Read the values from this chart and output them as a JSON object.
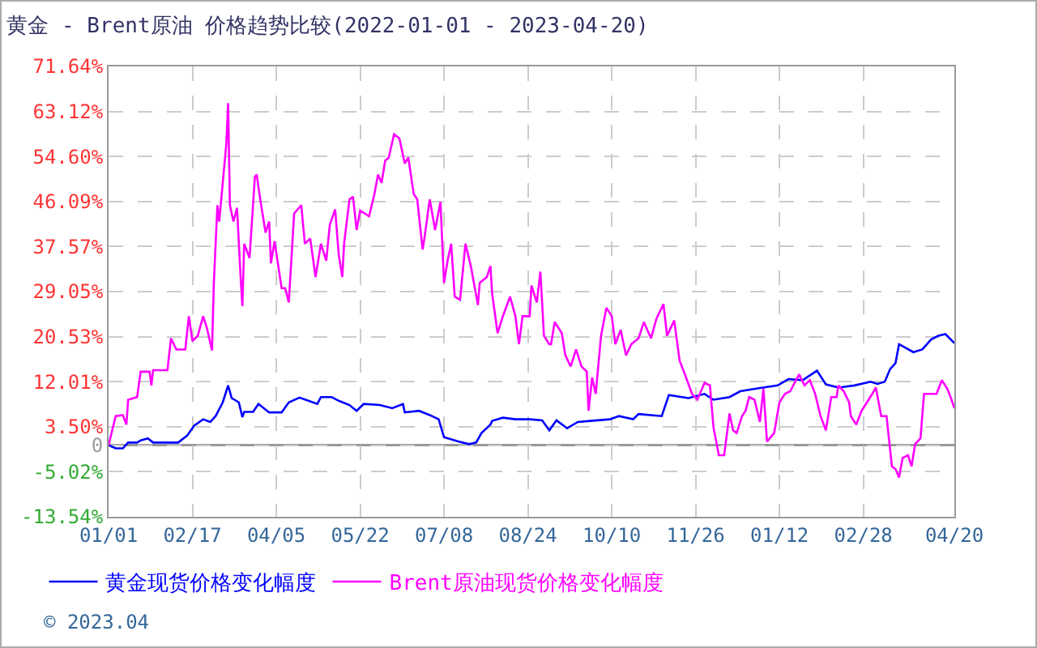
{
  "chart_data": {
    "type": "line",
    "title": "黄金 - Brent原油 价格趋势比较(2022-01-01 - 2023-04-20)",
    "xlim": [
      "2022-01-01",
      "2023-04-20"
    ],
    "xticks": [
      {
        "value": "2022-01-01",
        "label": "01/01"
      },
      {
        "value": "2022-02-17",
        "label": "02/17"
      },
      {
        "value": "2022-04-05",
        "label": "04/05"
      },
      {
        "value": "2022-05-22",
        "label": "05/22"
      },
      {
        "value": "2022-07-08",
        "label": "07/08"
      },
      {
        "value": "2022-08-24",
        "label": "08/24"
      },
      {
        "value": "2022-10-10",
        "label": "10/10"
      },
      {
        "value": "2022-11-26",
        "label": "11/26"
      },
      {
        "value": "2023-01-12",
        "label": "01/12"
      },
      {
        "value": "2023-02-28",
        "label": "02/28"
      },
      {
        "value": "2023-04-20",
        "label": "04/20"
      }
    ],
    "ylim": [
      -13.54,
      71.64
    ],
    "yticks": [
      {
        "value": 71.64,
        "label": "71.64%"
      },
      {
        "value": 63.12,
        "label": "63.12%"
      },
      {
        "value": 54.6,
        "label": "54.60%"
      },
      {
        "value": 46.09,
        "label": "46.09%"
      },
      {
        "value": 37.57,
        "label": "37.57%"
      },
      {
        "value": 29.05,
        "label": "29.05%"
      },
      {
        "value": 20.53,
        "label": "20.53%"
      },
      {
        "value": 12.01,
        "label": "12.01%"
      },
      {
        "value": 3.5,
        "label": "3.50%"
      },
      0,
      {
        "value": -5.02,
        "label": "-5.02%"
      },
      {
        "value": -13.54,
        "label": "-13.54%"
      }
    ],
    "grid": true,
    "legend": "bottom left",
    "marker": "none",
    "line_style": "solid",
    "ref_lines": [
      {
        "axis": "y",
        "value": 0,
        "color": "#999999"
      }
    ],
    "annotations": [
      "© 2023.04"
    ],
    "series": [
      {
        "name": "黄金现货价格变化幅度",
        "color": "#0000ff",
        "x": [
          "2022-01-01",
          "2022-01-05",
          "2022-01-09",
          "2022-01-12",
          "2022-01-17",
          "2022-01-19",
          "2022-01-23",
          "2022-01-26",
          "2022-02-09",
          "2022-02-14",
          "2022-02-18",
          "2022-02-23",
          "2022-02-27",
          "2022-03-02",
          "2022-03-06",
          "2022-03-09",
          "2022-03-11",
          "2022-03-15",
          "2022-03-17",
          "2022-03-18",
          "2022-03-23",
          "2022-03-26",
          "2022-04-01",
          "2022-04-08",
          "2022-04-12",
          "2022-04-18",
          "2022-04-23",
          "2022-04-28",
          "2022-04-30",
          "2022-05-06",
          "2022-05-10",
          "2022-05-16",
          "2022-05-20",
          "2022-05-24",
          "2022-06-02",
          "2022-06-09",
          "2022-06-15",
          "2022-06-16",
          "2022-06-24",
          "2022-06-30",
          "2022-07-05",
          "2022-07-08",
          "2022-07-16",
          "2022-07-22",
          "2022-07-26",
          "2022-07-29",
          "2022-08-03",
          "2022-08-04",
          "2022-08-10",
          "2022-08-17",
          "2022-08-25",
          "2022-09-01",
          "2022-09-05",
          "2022-09-09",
          "2022-09-15",
          "2022-09-21",
          "2022-09-28",
          "2022-10-09",
          "2022-10-14",
          "2022-10-22",
          "2022-10-25",
          "2022-11-07",
          "2022-11-11",
          "2022-11-22",
          "2022-12-01",
          "2022-12-06",
          "2022-12-15",
          "2022-12-21",
          "2022-12-30",
          "2023-01-05",
          "2023-01-11",
          "2023-01-17",
          "2023-01-25",
          "2023-02-02",
          "2023-02-07",
          "2023-02-14",
          "2023-02-23",
          "2023-03-04",
          "2023-03-08",
          "2023-03-12",
          "2023-03-15",
          "2023-03-18",
          "2023-03-20",
          "2023-03-28",
          "2023-04-02",
          "2023-04-07",
          "2023-04-11",
          "2023-04-15",
          "2023-04-20"
        ],
        "values": [
          0,
          -0.6,
          -0.6,
          0.5,
          0.5,
          0.9,
          1.3,
          0.5,
          0.5,
          1.8,
          3.7,
          4.9,
          4.4,
          5.5,
          8.1,
          11.3,
          8.9,
          8.1,
          5.3,
          6.3,
          6.3,
          7.8,
          6.2,
          6.2,
          8.1,
          9,
          8.4,
          7.8,
          9.1,
          9.1,
          8.4,
          7.6,
          6.5,
          7.8,
          7.6,
          7,
          7.8,
          6.2,
          6.5,
          5.7,
          4.9,
          1.5,
          0.7,
          0.2,
          0.5,
          2.3,
          3.9,
          4.6,
          5.2,
          4.9,
          4.9,
          4.7,
          2.8,
          4.7,
          3.2,
          4.4,
          4.6,
          4.9,
          5.5,
          4.9,
          5.9,
          5.5,
          9.5,
          8.9,
          9.7,
          8.6,
          9.1,
          10.2,
          10.7,
          11,
          11.3,
          12.5,
          12.3,
          14.1,
          11.5,
          10.9,
          11.3,
          12,
          11.6,
          12,
          14.4,
          15.5,
          19.1,
          17.6,
          18.1,
          20,
          20.7,
          21,
          19.3
        ]
      },
      {
        "name": "Brent原油现货价格变化幅度",
        "color": "#ff00ff",
        "x": [
          "2022-01-01",
          "2022-01-05",
          "2022-01-09",
          "2022-01-11",
          "2022-01-12",
          "2022-01-17",
          "2022-01-19",
          "2022-01-24",
          "2022-01-25",
          "2022-01-26",
          "2022-02-03",
          "2022-02-05",
          "2022-02-08",
          "2022-02-13",
          "2022-02-15",
          "2022-02-17",
          "2022-02-20",
          "2022-02-23",
          "2022-02-25",
          "2022-02-28",
          "2022-03-01",
          "2022-03-03",
          "2022-03-04",
          "2022-03-08",
          "2022-03-09",
          "2022-03-10",
          "2022-03-12",
          "2022-03-14",
          "2022-03-16",
          "2022-03-17",
          "2022-03-18",
          "2022-03-21",
          "2022-03-24",
          "2022-03-25",
          "2022-03-27",
          "2022-03-30",
          "2022-04-01",
          "2022-04-02",
          "2022-04-04",
          "2022-04-08",
          "2022-04-10",
          "2022-04-12",
          "2022-04-15",
          "2022-04-19",
          "2022-04-21",
          "2022-04-24",
          "2022-04-27",
          "2022-04-30",
          "2022-05-03",
          "2022-05-05",
          "2022-05-08",
          "2022-05-10",
          "2022-05-12",
          "2022-05-13",
          "2022-05-16",
          "2022-05-18",
          "2022-05-20",
          "2022-05-22",
          "2022-05-27",
          "2022-05-30",
          "2022-06-01",
          "2022-06-03",
          "2022-06-05",
          "2022-06-07",
          "2022-06-10",
          "2022-06-13",
          "2022-06-16",
          "2022-06-18",
          "2022-06-21",
          "2022-06-23",
          "2022-06-26",
          "2022-06-27",
          "2022-06-30",
          "2022-07-03",
          "2022-07-06",
          "2022-07-08",
          "2022-07-10",
          "2022-07-12",
          "2022-07-14",
          "2022-07-17",
          "2022-07-20",
          "2022-07-23",
          "2022-07-27",
          "2022-07-28",
          "2022-08-01",
          "2022-08-03",
          "2022-08-04",
          "2022-08-07",
          "2022-08-10",
          "2022-08-14",
          "2022-08-17",
          "2022-08-19",
          "2022-08-21",
          "2022-08-25",
          "2022-08-26",
          "2022-08-29",
          "2022-08-31",
          "2022-09-02",
          "2022-09-05",
          "2022-09-06",
          "2022-09-08",
          "2022-09-12",
          "2022-09-14",
          "2022-09-17",
          "2022-09-20",
          "2022-09-23",
          "2022-09-26",
          "2022-09-27",
          "2022-09-29",
          "2022-10-01",
          "2022-10-04",
          "2022-10-07",
          "2022-10-10",
          "2022-10-12",
          "2022-10-15",
          "2022-10-18",
          "2022-10-21",
          "2022-10-25",
          "2022-10-28",
          "2022-11-01",
          "2022-11-04",
          "2022-11-08",
          "2022-11-10",
          "2022-11-14",
          "2022-11-17",
          "2022-11-20",
          "2022-11-24",
          "2022-11-27",
          "2022-12-01",
          "2022-12-04",
          "2022-12-06",
          "2022-12-09",
          "2022-12-12",
          "2022-12-15",
          "2022-12-17",
          "2022-12-19",
          "2022-12-22",
          "2022-12-24",
          "2022-12-26",
          "2022-12-29",
          "2023-01-01",
          "2023-01-03",
          "2023-01-05",
          "2023-01-09",
          "2023-01-12",
          "2023-01-15",
          "2023-01-18",
          "2023-01-23",
          "2023-01-26",
          "2023-01-29",
          "2023-02-01",
          "2023-02-04",
          "2023-02-07",
          "2023-02-10",
          "2023-02-13",
          "2023-02-14",
          "2023-02-17",
          "2023-02-20",
          "2023-02-21",
          "2023-02-24",
          "2023-02-27",
          "2023-03-02",
          "2023-03-05",
          "2023-03-07",
          "2023-03-10",
          "2023-03-13",
          "2023-03-14",
          "2023-03-16",
          "2023-03-18",
          "2023-03-20",
          "2023-03-22",
          "2023-03-25",
          "2023-03-27",
          "2023-03-29",
          "2023-04-01",
          "2023-04-03",
          "2023-04-10",
          "2023-04-13",
          "2023-04-16",
          "2023-04-18",
          "2023-04-20"
        ],
        "values": [
          0,
          5.5,
          5.7,
          3.9,
          8.6,
          9.1,
          13.9,
          13.9,
          11.3,
          14.2,
          14.2,
          20.2,
          18.1,
          18.1,
          24.4,
          19.7,
          20.7,
          24.4,
          22.3,
          17.9,
          30.7,
          45.4,
          42.3,
          57,
          64.7,
          45.4,
          42.3,
          44.9,
          31.8,
          26.3,
          38.1,
          35.4,
          50.7,
          51.2,
          46.5,
          40.2,
          42.3,
          34.4,
          38.6,
          29.7,
          29.7,
          27,
          43.8,
          45.4,
          38.1,
          39.1,
          31.8,
          38.1,
          34.9,
          41.7,
          44.6,
          36,
          31.8,
          38.1,
          46.5,
          47,
          40.7,
          44.4,
          43.3,
          47.5,
          51.2,
          49.6,
          53.8,
          54.4,
          58.8,
          58,
          53.3,
          54.4,
          47.5,
          46.5,
          37,
          39.1,
          46.5,
          40.7,
          46,
          30.7,
          34.9,
          38.1,
          28.1,
          27.5,
          38.1,
          33.9,
          26.5,
          30.7,
          31.8,
          33.9,
          28.6,
          21.2,
          24.4,
          28.1,
          24.4,
          19.1,
          24.4,
          24.4,
          30.2,
          27,
          32.8,
          20.7,
          19.1,
          19.1,
          23.3,
          21.2,
          17,
          14.9,
          18.1,
          14.9,
          13.9,
          6.5,
          12.8,
          9.7,
          20.7,
          26,
          24.4,
          19.1,
          21.8,
          17,
          19.1,
          20.2,
          23.3,
          20.2,
          23.9,
          26.7,
          20.7,
          23.6,
          16,
          13.4,
          9.7,
          8.6,
          11.8,
          11.3,
          3.4,
          -1.9,
          -1.9,
          6,
          2.8,
          2.3,
          5.5,
          6.5,
          9.1,
          8.6,
          4.4,
          10.7,
          0.7,
          2.3,
          8.1,
          9.7,
          10.2,
          13.4,
          11.3,
          12.3,
          9.7,
          5.5,
          2.8,
          9.1,
          9.1,
          11.3,
          10.2,
          8.1,
          5.5,
          3.9,
          6.5,
          8.1,
          9.7,
          10.9,
          5.5,
          5.5,
          2.3,
          -4,
          -4.5,
          -6.1,
          -2.4,
          -1.9,
          -4,
          0.2,
          1.3,
          9.7,
          9.7,
          12.3,
          10.7,
          9,
          7
        ]
      }
    ]
  }
}
